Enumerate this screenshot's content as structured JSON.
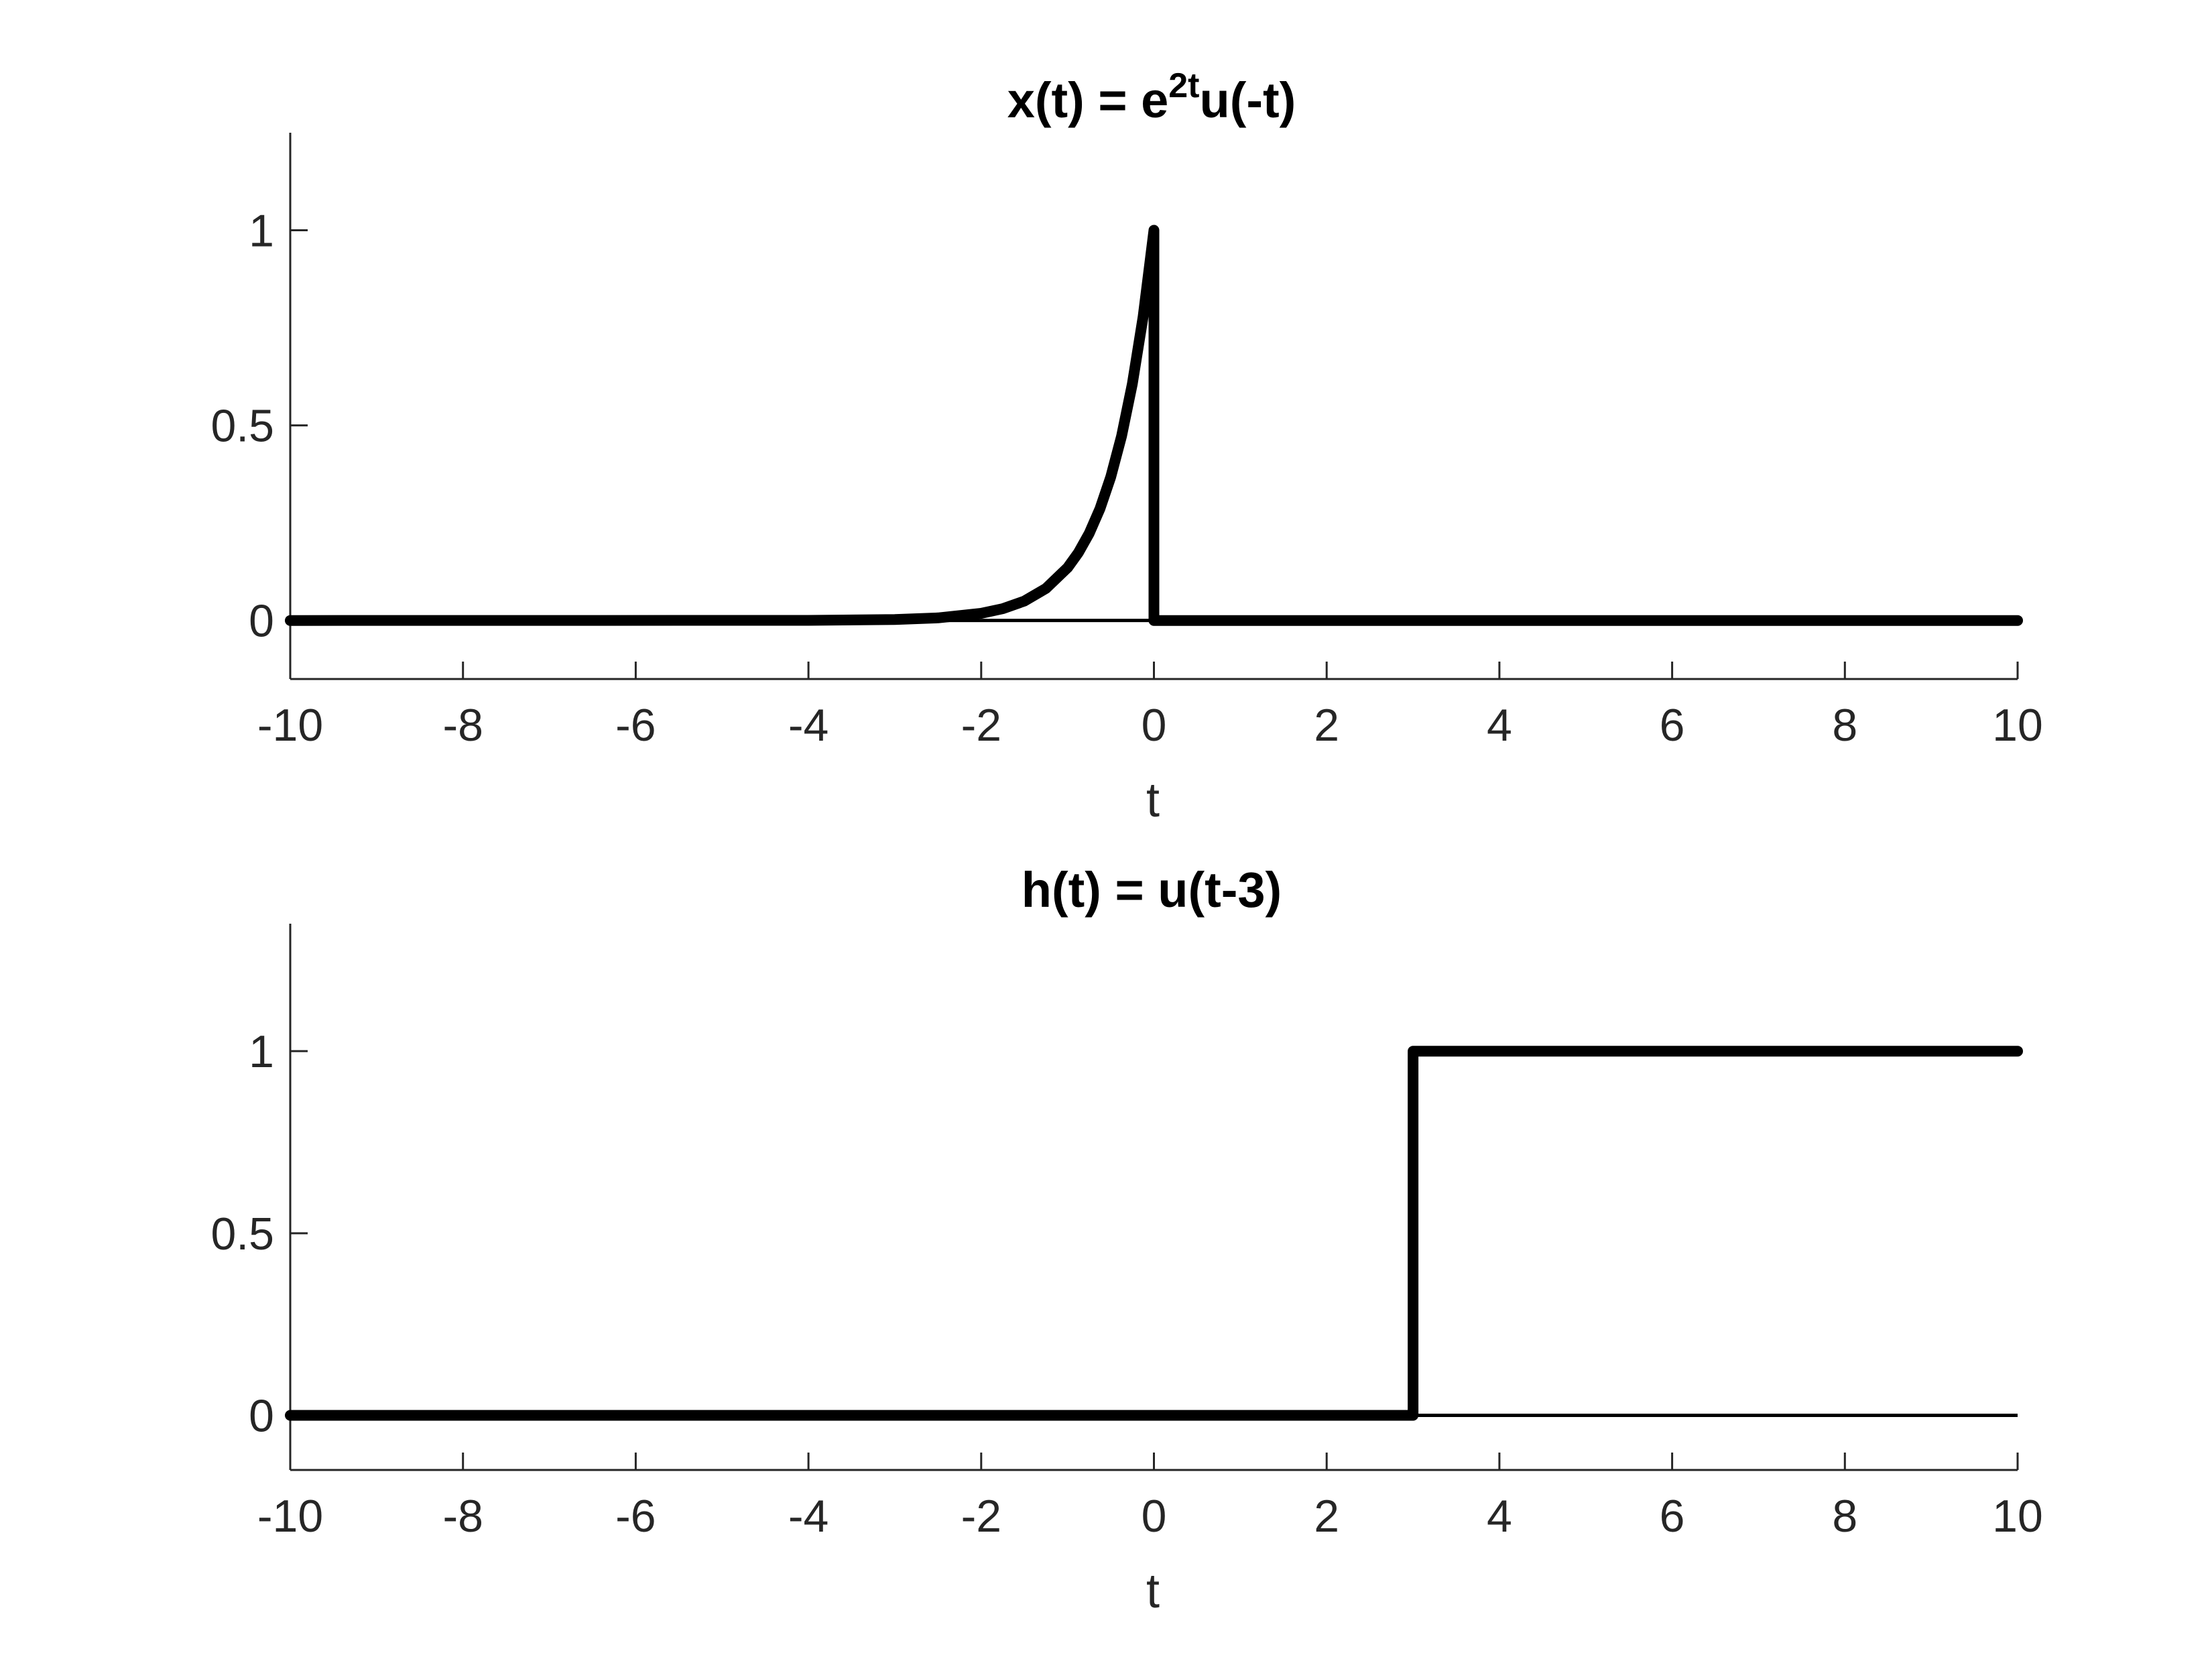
{
  "colors": {
    "line": "#000000",
    "axis": "#262626",
    "background": "#ffffff"
  },
  "chart_data": [
    {
      "type": "line",
      "title_parts": {
        "pre": "x(t) = e",
        "sup": "2t",
        "post": "u(-t)"
      },
      "xlabel": "t",
      "ylabel": "",
      "xlim": [
        -10,
        10
      ],
      "ylim": [
        -0.15,
        1.25
      ],
      "xticks": [
        -10,
        -8,
        -6,
        -4,
        -2,
        0,
        2,
        4,
        6,
        8,
        10
      ],
      "xtick_labels": [
        "-10",
        "-8",
        "-6",
        "-4",
        "-2",
        "0",
        "2",
        "4",
        "6",
        "8",
        "10"
      ],
      "yticks": [
        0,
        0.5,
        1
      ],
      "ytick_labels": [
        "0",
        "0.5",
        "1"
      ],
      "grid": false,
      "baseline": 0,
      "series": [
        {
          "x": [
            -10,
            -4,
            -3,
            -2.5,
            -2,
            -1.75,
            -1.5,
            -1.25,
            -1,
            -0.875,
            -0.75,
            -0.625,
            -0.5,
            -0.375,
            -0.25,
            -0.125,
            0,
            0,
            10
          ],
          "y": [
            0,
            0.0003,
            0.0025,
            0.0067,
            0.0183,
            0.0302,
            0.0498,
            0.0821,
            0.1353,
            0.1738,
            0.2231,
            0.2865,
            0.3679,
            0.4724,
            0.6065,
            0.7788,
            1,
            0,
            0
          ]
        }
      ]
    },
    {
      "type": "line",
      "title": "h(t) = u(t-3)",
      "xlabel": "t",
      "ylabel": "",
      "xlim": [
        -10,
        10
      ],
      "ylim": [
        -0.15,
        1.35
      ],
      "xticks": [
        -10,
        -8,
        -6,
        -4,
        -2,
        0,
        2,
        4,
        6,
        8,
        10
      ],
      "xtick_labels": [
        "-10",
        "-8",
        "-6",
        "-4",
        "-2",
        "0",
        "2",
        "4",
        "6",
        "8",
        "10"
      ],
      "yticks": [
        0,
        0.5,
        1
      ],
      "ytick_labels": [
        "0",
        "0.5",
        "1"
      ],
      "grid": false,
      "baseline": 0,
      "series": [
        {
          "x": [
            -10,
            3,
            3,
            10
          ],
          "y": [
            0,
            0,
            1,
            1
          ]
        }
      ]
    }
  ]
}
